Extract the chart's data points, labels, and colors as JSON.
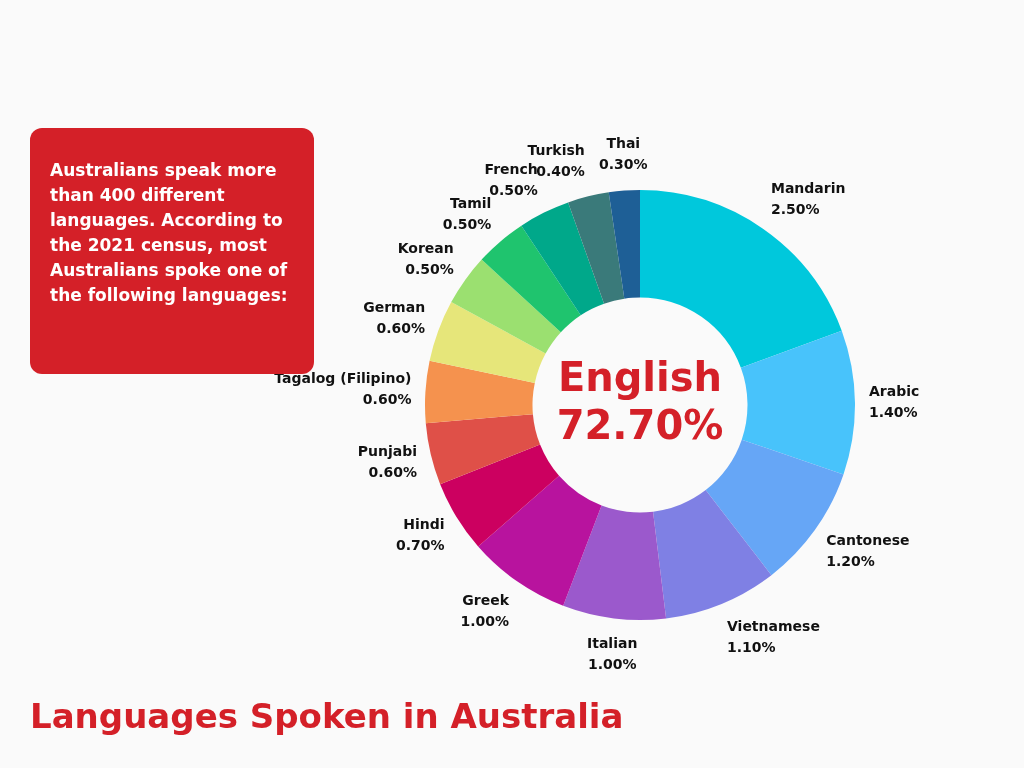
{
  "chart_data": {
    "type": "donut",
    "title": "Languages Spoken in Australia",
    "categories": [
      "Mandarin",
      "Arabic",
      "Cantonese",
      "Vietnamese",
      "Italian",
      "Greek",
      "Hindi",
      "Punjabi",
      "Tagalog (Filipino)",
      "German",
      "Korean",
      "Tamil",
      "French",
      "Turkish",
      "Thai"
    ],
    "values": [
      2.5,
      1.4,
      1.2,
      1.1,
      1.0,
      1.0,
      0.7,
      0.6,
      0.6,
      0.6,
      0.5,
      0.5,
      0.5,
      0.4,
      0.3
    ],
    "value_labels": [
      "2.50%",
      "1.40%",
      "1.20%",
      "1.10%",
      "1.00%",
      "1.00%",
      "0.70%",
      "0.60%",
      "0.60%",
      "0.60%",
      "0.50%",
      "0.50%",
      "0.50%",
      "0.40%",
      "0.30%"
    ],
    "colors": [
      "#00c8dc",
      "#48c3fb",
      "#66a6f6",
      "#7f80e4",
      "#9b59cc",
      "#b8139e",
      "#cc0060",
      "#df5048",
      "#f5924e",
      "#e6e67a",
      "#9be070",
      "#1fc46e",
      "#00a88a",
      "#3a7a7a",
      "#1e5f96"
    ],
    "annotations": [
      "English 72.70%",
      "Australians speak more than 400 different languages. According to the 2021 census, most Australians spoke one of the following languages:"
    ],
    "legend": false
  }
}
